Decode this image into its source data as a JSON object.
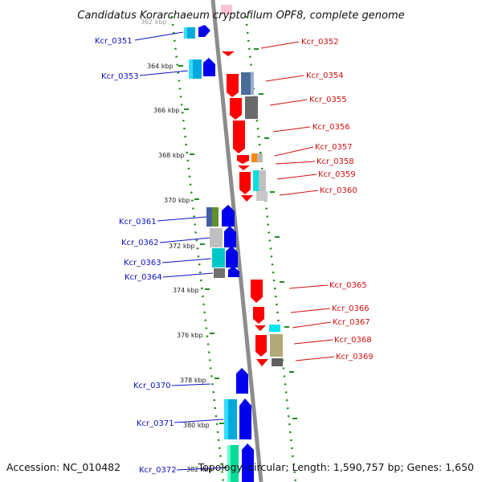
{
  "title": "Candidatus Korarchaeum cryptofilum OPF8, complete genome",
  "footer": {
    "accession": "Accession: NC_010482",
    "summary": "Topology: circular; Length: 1,590,757 bp; Genes: 1,650"
  },
  "colors": {
    "backbone": "#8c8c8c",
    "forward_gene": "#0000ee",
    "reverse_gene": "#ff0000",
    "left_label": "#1010c0",
    "right_label": "#d01010",
    "dots": "#1f8a1f"
  },
  "ticks": [
    {
      "label": "362 kbp"
    },
    {
      "label": "364 kbp"
    },
    {
      "label": "366 kbp"
    },
    {
      "label": "368 kbp"
    },
    {
      "label": "370 kbp"
    },
    {
      "label": "372 kbp"
    },
    {
      "label": "374 kbp"
    },
    {
      "label": "376 kbp"
    },
    {
      "label": "378 kbp"
    },
    {
      "label": "380 kbp"
    },
    {
      "label": "382 kbp"
    }
  ],
  "genes_left": [
    {
      "id": "Kcr_0351"
    },
    {
      "id": "Kcr_0353"
    },
    {
      "id": "Kcr_0361"
    },
    {
      "id": "Kcr_0362"
    },
    {
      "id": "Kcr_0363"
    },
    {
      "id": "Kcr_0364"
    },
    {
      "id": "Kcr_0370"
    },
    {
      "id": "Kcr_0371"
    },
    {
      "id": "Kcr_0372"
    }
  ],
  "genes_right": [
    {
      "id": "Kcr_0352"
    },
    {
      "id": "Kcr_0354"
    },
    {
      "id": "Kcr_0355"
    },
    {
      "id": "Kcr_0356"
    },
    {
      "id": "Kcr_0357"
    },
    {
      "id": "Kcr_0358"
    },
    {
      "id": "Kcr_0359"
    },
    {
      "id": "Kcr_0360"
    },
    {
      "id": "Kcr_0365"
    },
    {
      "id": "Kcr_0366"
    },
    {
      "id": "Kcr_0367"
    },
    {
      "id": "Kcr_0368"
    },
    {
      "id": "Kcr_0369"
    }
  ]
}
